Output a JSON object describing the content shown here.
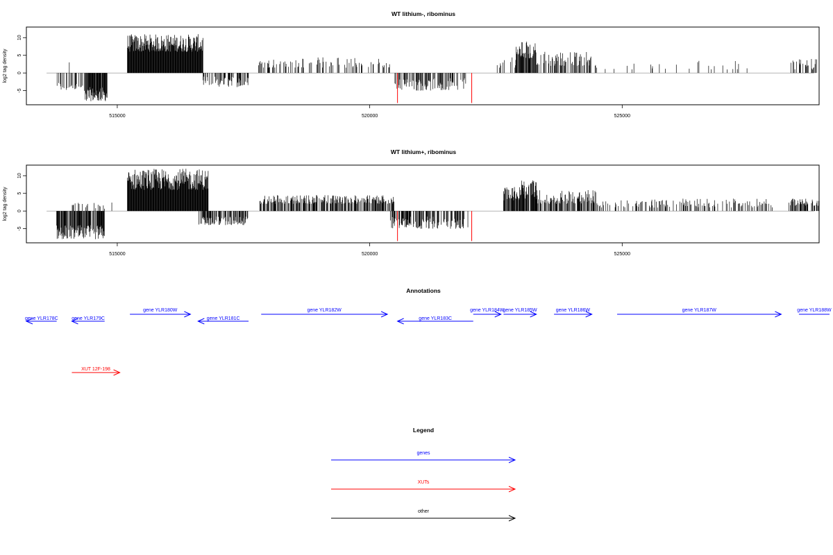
{
  "chart_data": [
    {
      "type": "bar",
      "title": "WT lithium-, ribominus",
      "xlabel": "",
      "ylabel": "log2 tag density",
      "xlim": [
        513200,
        528900
      ],
      "ylim": [
        -9,
        13
      ],
      "xticks": [
        515000,
        520000,
        525000
      ],
      "yticks": [
        10,
        5,
        0,
        -5
      ],
      "grid": false,
      "baseline": 0,
      "segments": [
        {
          "from": 513800,
          "to": 514350,
          "min": -5,
          "max": -2.5,
          "density": 0.35
        },
        {
          "from": 514350,
          "to": 514800,
          "min": -8,
          "max": -4,
          "density": 0.9
        },
        {
          "from": 514050,
          "to": 514050,
          "min": 3,
          "max": 3,
          "density": 1
        },
        {
          "from": 515200,
          "to": 516700,
          "min": 6,
          "max": 11,
          "density": 1.0
        },
        {
          "from": 516700,
          "to": 517600,
          "min": -4,
          "max": -1,
          "density": 0.5
        },
        {
          "from": 517800,
          "to": 520400,
          "min": 1.5,
          "max": 4.5,
          "density": 0.25
        },
        {
          "from": 520500,
          "to": 521900,
          "min": -5,
          "max": -1.5,
          "density": 0.45
        },
        {
          "from": 522500,
          "to": 522900,
          "min": 1.5,
          "max": 5,
          "density": 0.3
        },
        {
          "from": 522900,
          "to": 523300,
          "min": 4,
          "max": 9,
          "density": 0.85
        },
        {
          "from": 523300,
          "to": 524400,
          "min": 2,
          "max": 6,
          "density": 0.4
        },
        {
          "from": 524400,
          "to": 527500,
          "min": 1,
          "max": 3.5,
          "density": 0.08
        },
        {
          "from": 528300,
          "to": 528900,
          "min": 1,
          "max": 4,
          "density": 0.3
        }
      ],
      "red_marks": [
        {
          "x": 520550,
          "y": -8.5
        },
        {
          "x": 522020,
          "y": -8.5
        }
      ]
    },
    {
      "type": "bar",
      "title": "WT lithium+, ribominus",
      "xlabel": "",
      "ylabel": "log2 tag density",
      "xlim": [
        513200,
        528900
      ],
      "ylim": [
        -9,
        13
      ],
      "xticks": [
        515000,
        520000,
        525000
      ],
      "yticks": [
        10,
        5,
        0,
        -5
      ],
      "grid": false,
      "baseline": 0,
      "segments": [
        {
          "from": 513800,
          "to": 514000,
          "min": -8,
          "max": -4,
          "density": 0.9
        },
        {
          "from": 514000,
          "to": 514750,
          "min": -8,
          "max": -4,
          "density": 0.8
        },
        {
          "from": 514100,
          "to": 514900,
          "min": 0.5,
          "max": 2.5,
          "density": 0.2
        },
        {
          "from": 515200,
          "to": 516800,
          "min": 6,
          "max": 12,
          "density": 1.0
        },
        {
          "from": 516600,
          "to": 517600,
          "min": -4,
          "max": -1.5,
          "density": 0.55
        },
        {
          "from": 517800,
          "to": 520500,
          "min": 2,
          "max": 4.5,
          "density": 0.6
        },
        {
          "from": 520400,
          "to": 521950,
          "min": -5,
          "max": -1.5,
          "density": 0.55
        },
        {
          "from": 522650,
          "to": 523100,
          "min": 3,
          "max": 7,
          "density": 0.7
        },
        {
          "from": 523000,
          "to": 523300,
          "min": 4,
          "max": 9,
          "density": 0.8
        },
        {
          "from": 523300,
          "to": 524500,
          "min": 2,
          "max": 6,
          "density": 0.55
        },
        {
          "from": 524500,
          "to": 528000,
          "min": 1,
          "max": 3.5,
          "density": 0.3
        },
        {
          "from": 528300,
          "to": 528900,
          "min": 1.5,
          "max": 3.5,
          "density": 0.5
        }
      ],
      "red_marks": [
        {
          "x": 520550,
          "y": -8.5
        },
        {
          "x": 522020,
          "y": -8.5
        }
      ]
    }
  ],
  "annotations": {
    "title": "Annotations",
    "genes": [
      {
        "label": "gene YLR178C",
        "start": 513800,
        "end": 513200,
        "strand": "-",
        "row": 2
      },
      {
        "label": "gene YLR179C",
        "start": 514750,
        "end": 514100,
        "strand": "-",
        "row": 2
      },
      {
        "label": "gene YLR180W",
        "start": 515250,
        "end": 516450,
        "strand": "+",
        "row": 1
      },
      {
        "label": "gene YLR181C",
        "start": 517600,
        "end": 516600,
        "strand": "-",
        "row": 2
      },
      {
        "label": "gene YLR182W",
        "start": 517850,
        "end": 520350,
        "strand": "+",
        "row": 1
      },
      {
        "label": "gene YLR183C",
        "start": 522050,
        "end": 520550,
        "strand": "-",
        "row": 2
      },
      {
        "label": "gene YLR184W",
        "start": 522050,
        "end": 522600,
        "strand": "+",
        "row": 0
      },
      {
        "label": "gene YLR185W",
        "start": 522650,
        "end": 523300,
        "strand": "+",
        "row": 0
      },
      {
        "label": "gene YLR186W",
        "start": 523650,
        "end": 524400,
        "strand": "+",
        "row": 0
      },
      {
        "label": "gene YLR187W",
        "start": 524900,
        "end": 528150,
        "strand": "+",
        "row": 1
      },
      {
        "label": "gene YLR188W",
        "start": 528500,
        "end": 529500,
        "strand": "+",
        "row": 1
      }
    ],
    "xuts": [
      {
        "label": "XUT 12F-198",
        "start": 514100,
        "end": 515050,
        "strand": "+"
      }
    ]
  },
  "legend": {
    "title": "Legend",
    "items": [
      {
        "label": "genes",
        "color": "#0000ff"
      },
      {
        "label": "XUTs",
        "color": "#ff0000"
      },
      {
        "label": "other",
        "color": "#000000"
      }
    ]
  },
  "colors": {
    "bars": "#000000",
    "red_marks": "#ff0000",
    "genes": "#0000ff",
    "xuts": "#ff0000",
    "other": "#000000"
  }
}
